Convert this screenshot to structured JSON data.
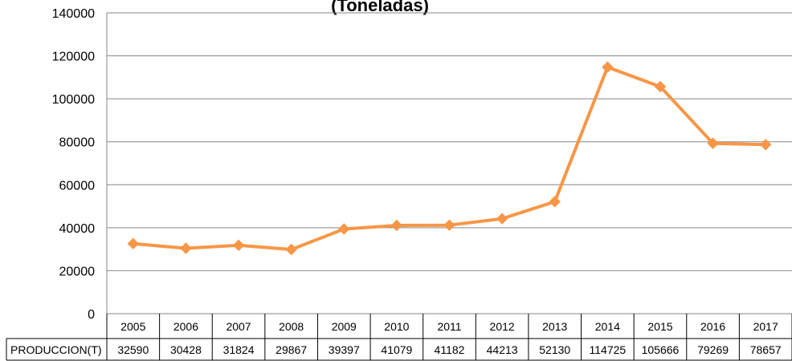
{
  "chart_data": {
    "type": "table",
    "title": "(Toneladas)",
    "categories": [
      "2005",
      "2006",
      "2007",
      "2008",
      "2009",
      "2010",
      "2011",
      "2012",
      "2013",
      "2014",
      "2015",
      "2016",
      "2017"
    ],
    "series": [
      {
        "name": "PRODUCCION(T)",
        "values": [
          32590,
          30428,
          31824,
          29867,
          39397,
          41079,
          41182,
          44213,
          52130,
          114725,
          105666,
          79269,
          78657
        ]
      }
    ],
    "ylim": [
      0,
      140000
    ],
    "yticks": [
      0,
      20000,
      40000,
      60000,
      80000,
      100000,
      120000,
      140000
    ],
    "grid": true,
    "legend": "none",
    "line_color": "#F79646",
    "marker": "diamond",
    "data_table": true
  }
}
